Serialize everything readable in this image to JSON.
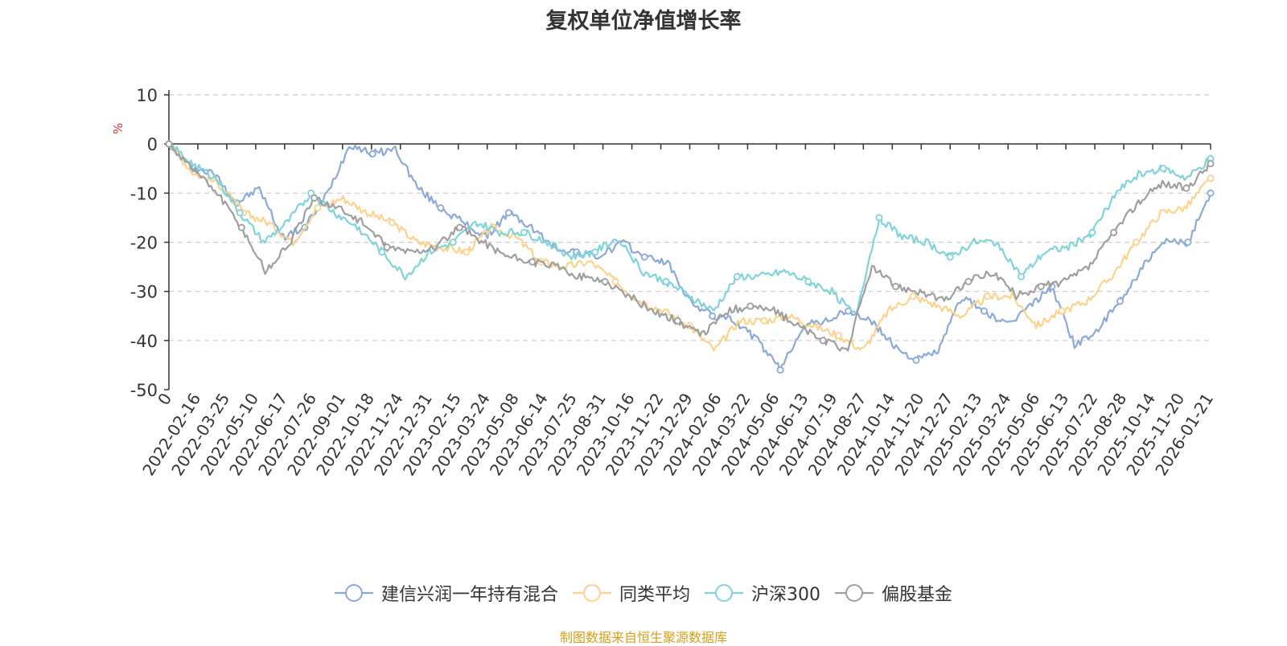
{
  "chart_data": {
    "type": "line",
    "title": "复权单位净值增长率",
    "ylabel": "%",
    "xlabel": "",
    "ylim": [
      -50,
      10
    ],
    "yticks": [
      10,
      0,
      -10,
      -20,
      -30,
      -40,
      -50
    ],
    "grid": true,
    "legend_position": "bottom",
    "x_tick_labels": [
      "0",
      "2022-02-16",
      "2022-03-25",
      "2022-05-10",
      "2022-06-17",
      "2022-07-26",
      "2022-09-01",
      "2022-10-18",
      "2022-11-24",
      "2022-12-31",
      "2023-02-15",
      "2023-03-24",
      "2023-05-08",
      "2023-06-14",
      "2023-07-25",
      "2023-08-31",
      "2023-10-16",
      "2023-11-22",
      "2023-12-29",
      "2024-02-06",
      "2024-03-22",
      "2024-05-06",
      "2024-06-13",
      "2024-07-19",
      "2024-08-27",
      "2024-10-14",
      "2024-11-20",
      "2024-12-27",
      "2025-02-13",
      "2025-03-24",
      "2025-05-06",
      "2025-06-13",
      "2025-07-22",
      "2025-08-28",
      "2025-10-14",
      "2025-11-20",
      "2026-01-21"
    ],
    "series": [
      {
        "name": "建信兴润一年持有混合",
        "color": "#8aa9d8",
        "values": [
          0,
          -5,
          -6,
          -12,
          -9,
          -19,
          -17,
          -10,
          0,
          -2,
          -1,
          -9,
          -13,
          -16,
          -19,
          -14,
          -17,
          -21,
          -22,
          -23,
          -20,
          -23,
          -24,
          -32,
          -35,
          -36,
          -40,
          -46,
          -37,
          -36,
          -34,
          -36,
          -41,
          -44,
          -42,
          -31,
          -34,
          -37,
          -33,
          -29,
          -41,
          -38,
          -32,
          -25,
          -20,
          -20,
          -10
        ]
      },
      {
        "name": "同类平均",
        "color": "#fcd28c",
        "values": [
          0,
          -6,
          -8,
          -14,
          -16,
          -20,
          -13,
          -11,
          -14,
          -16,
          -20,
          -21,
          -22,
          -17,
          -19,
          -24,
          -25,
          -24,
          -28,
          -32,
          -34,
          -37,
          -42,
          -36,
          -36,
          -35,
          -37,
          -39,
          -42,
          -34,
          -31,
          -33,
          -35,
          -31,
          -31,
          -37,
          -34,
          -32,
          -27,
          -20,
          -14,
          -13,
          -7
        ]
      },
      {
        "name": "沪深300",
        "color": "#7fd4d9",
        "values": [
          0,
          -4,
          -7,
          -14,
          -20,
          -16,
          -10,
          -14,
          -17,
          -22,
          -27,
          -22,
          -20,
          -16,
          -18,
          -18,
          -20,
          -23,
          -22,
          -19,
          -26,
          -28,
          -31,
          -34,
          -27,
          -27,
          -26,
          -28,
          -30,
          -35,
          -15,
          -19,
          -20,
          -23,
          -20,
          -20,
          -27,
          -22,
          -21,
          -18,
          -10,
          -6,
          -5,
          -7,
          -3
        ]
      },
      {
        "name": "偏股基金",
        "color": "#9e9e9e",
        "values": [
          0,
          -5,
          -10,
          -17,
          -26,
          -20,
          -11,
          -13,
          -16,
          -21,
          -22,
          -21,
          -17,
          -20,
          -23,
          -24,
          -25,
          -27,
          -28,
          -31,
          -34,
          -36,
          -39,
          -34,
          -33,
          -34,
          -37,
          -40,
          -42,
          -25,
          -29,
          -30,
          -32,
          -28,
          -26,
          -31,
          -29,
          -28,
          -25,
          -18,
          -12,
          -8,
          -9,
          -4
        ]
      }
    ]
  },
  "source_note": "制图数据来自恒生聚源数据库"
}
